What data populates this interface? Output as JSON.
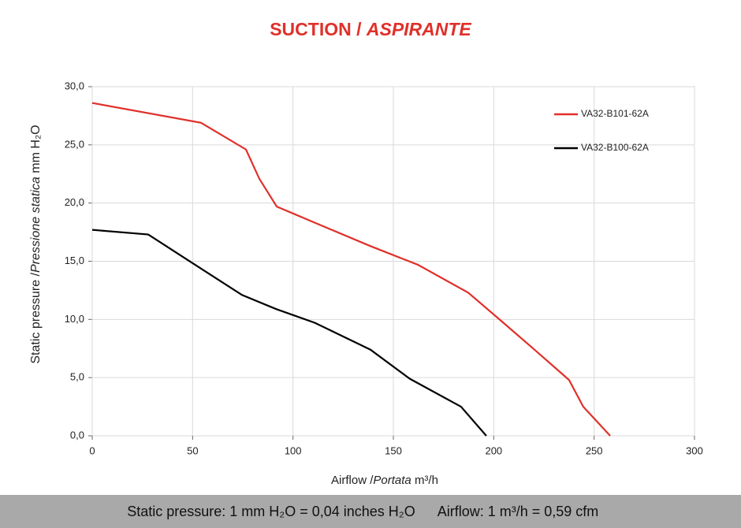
{
  "chart_data": {
    "type": "line",
    "title": [
      "SUCTION /",
      "ASPIRANTE"
    ],
    "y_label": [
      "Static pressure /",
      "Pressione statica",
      "mm H₂O"
    ],
    "x_label": [
      "Airflow /",
      "Portata",
      "m³/h"
    ],
    "xlim": [
      0,
      300
    ],
    "xticks": [
      0,
      50,
      100,
      150,
      200,
      250,
      300
    ],
    "ylim": [
      0,
      30
    ],
    "yticks": [
      {
        "value": 0,
        "label": "0,0"
      },
      {
        "value": 5,
        "label": "5,0"
      },
      {
        "value": 10,
        "label": "10,0"
      },
      {
        "value": 15,
        "label": "15,0"
      },
      {
        "value": 20,
        "label": "20,0"
      },
      {
        "value": 25,
        "label": "25,0"
      },
      {
        "value": 30,
        "label": "30,0"
      }
    ],
    "grid": true,
    "legend": "upper right",
    "series": [
      {
        "name": "VA32-B101-62A",
        "color": "#e0302a",
        "x": [
          0,
          54.2,
          76.6,
          83.2,
          91.9,
          111,
          138.6,
          162.2,
          187.3,
          202.2,
          220.3,
          237.5,
          244.6,
          258
        ],
        "values": [
          28.6,
          26.9,
          24.6,
          22.1,
          19.7,
          18.3,
          16.3,
          14.7,
          12.3,
          10.1,
          7.4,
          4.8,
          2.5,
          0
        ]
      },
      {
        "name": "VA32-B100-62A",
        "color": "#000000",
        "x": [
          0,
          27.9,
          50.3,
          74.6,
          91.5,
          111,
          138.6,
          158.2,
          183.7,
          196.3
        ],
        "values": [
          17.7,
          17.3,
          14.8,
          12.1,
          10.9,
          9.7,
          7.4,
          4.9,
          2.5,
          0
        ]
      }
    ],
    "footer": [
      "Static pressure: 1 mm H₂O = 0,04 inches H₂O",
      "Airflow: 1 m³/h = 0,59 cfm"
    ]
  }
}
